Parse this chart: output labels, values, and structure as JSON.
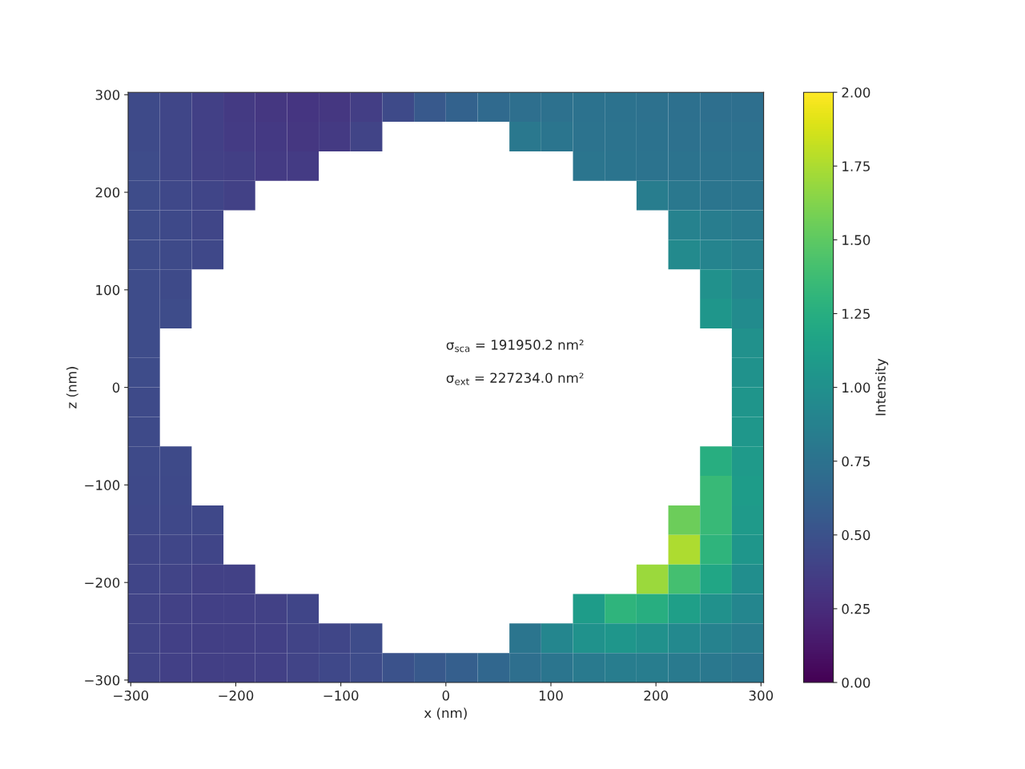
{
  "chart_data": {
    "type": "heatmap",
    "xlabel": "x (nm)",
    "ylabel": "z (nm)",
    "clabel": "Intensity",
    "xlim": [
      -302.5,
      302.5
    ],
    "ylim": [
      -302.5,
      302.5
    ],
    "xticks": [
      -300,
      -200,
      -100,
      0,
      100,
      200,
      300
    ],
    "yticks": [
      -300,
      -200,
      -100,
      0,
      100,
      200,
      300
    ],
    "clim": [
      0,
      2
    ],
    "cticks": [
      {
        "value": 0,
        "label": "0.00"
      },
      {
        "value": 0.25,
        "label": "0.25"
      },
      {
        "value": 0.5,
        "label": "0.50"
      },
      {
        "value": 0.75,
        "label": "0.75"
      },
      {
        "value": 1,
        "label": "1.00"
      },
      {
        "value": 1.25,
        "label": "1.25"
      },
      {
        "value": 1.5,
        "label": "1.50"
      },
      {
        "value": 1.75,
        "label": "1.75"
      },
      {
        "value": 2,
        "label": "2.00"
      }
    ],
    "annotations": [
      "σ$_{sca}$ = 191950.2 nm²",
      "σ$_{ext}$ = 227234.0 nm²"
    ],
    "cells": [
      [
        0.45,
        0.42,
        0.38,
        0.34,
        0.32,
        0.31,
        0.32,
        0.36,
        0.45,
        0.55,
        0.62,
        0.68,
        0.72,
        0.74,
        0.75,
        0.75,
        0.74,
        0.73,
        0.72,
        0.72
      ],
      [
        0.45,
        0.42,
        0.38,
        0.35,
        0.33,
        0.32,
        0.34,
        0.4,
        null,
        null,
        null,
        null,
        0.8,
        0.78,
        0.76,
        0.76,
        0.75,
        0.74,
        0.74,
        0.74
      ],
      [
        0.46,
        0.42,
        0.39,
        0.37,
        0.35,
        0.35,
        null,
        null,
        null,
        null,
        null,
        null,
        null,
        null,
        0.78,
        0.77,
        0.76,
        0.76,
        0.76,
        0.76
      ],
      [
        0.46,
        0.43,
        0.41,
        0.39,
        null,
        null,
        null,
        null,
        null,
        null,
        null,
        null,
        null,
        null,
        null,
        null,
        0.84,
        0.8,
        0.78,
        0.78
      ],
      [
        0.46,
        0.44,
        0.42,
        null,
        null,
        null,
        null,
        null,
        null,
        null,
        null,
        null,
        null,
        null,
        null,
        null,
        null,
        0.88,
        0.84,
        0.82
      ],
      [
        0.46,
        0.45,
        0.43,
        null,
        null,
        null,
        null,
        null,
        null,
        null,
        null,
        null,
        null,
        null,
        null,
        null,
        null,
        0.95,
        0.9,
        0.86
      ],
      [
        0.46,
        0.45,
        null,
        null,
        null,
        null,
        null,
        null,
        null,
        null,
        null,
        null,
        null,
        null,
        null,
        null,
        null,
        null,
        1.0,
        0.92
      ],
      [
        0.46,
        0.46,
        null,
        null,
        null,
        null,
        null,
        null,
        null,
        null,
        null,
        null,
        null,
        null,
        null,
        null,
        null,
        null,
        1.05,
        0.96
      ],
      [
        0.46,
        null,
        null,
        null,
        null,
        null,
        null,
        null,
        null,
        null,
        null,
        null,
        null,
        null,
        null,
        null,
        null,
        null,
        null,
        1.0
      ],
      [
        0.46,
        null,
        null,
        null,
        null,
        null,
        null,
        null,
        null,
        null,
        null,
        null,
        null,
        null,
        null,
        null,
        null,
        null,
        null,
        1.02
      ],
      [
        0.45,
        null,
        null,
        null,
        null,
        null,
        null,
        null,
        null,
        null,
        null,
        null,
        null,
        null,
        null,
        null,
        null,
        null,
        null,
        1.04
      ],
      [
        0.45,
        null,
        null,
        null,
        null,
        null,
        null,
        null,
        null,
        null,
        null,
        null,
        null,
        null,
        null,
        null,
        null,
        null,
        null,
        1.06
      ],
      [
        0.45,
        0.45,
        null,
        null,
        null,
        null,
        null,
        null,
        null,
        null,
        null,
        null,
        null,
        null,
        null,
        null,
        null,
        null,
        1.25,
        1.08
      ],
      [
        0.44,
        0.44,
        null,
        null,
        null,
        null,
        null,
        null,
        null,
        null,
        null,
        null,
        null,
        null,
        null,
        null,
        null,
        null,
        1.35,
        1.1
      ],
      [
        0.43,
        0.43,
        0.43,
        null,
        null,
        null,
        null,
        null,
        null,
        null,
        null,
        null,
        null,
        null,
        null,
        null,
        null,
        1.55,
        1.35,
        1.08
      ],
      [
        0.42,
        0.42,
        0.41,
        null,
        null,
        null,
        null,
        null,
        null,
        null,
        null,
        null,
        null,
        null,
        null,
        null,
        null,
        1.75,
        1.3,
        1.05
      ],
      [
        0.41,
        0.4,
        0.39,
        0.39,
        null,
        null,
        null,
        null,
        null,
        null,
        null,
        null,
        null,
        null,
        null,
        null,
        1.7,
        1.4,
        1.18,
        0.98
      ],
      [
        0.4,
        0.39,
        0.38,
        0.38,
        0.39,
        0.41,
        null,
        null,
        null,
        null,
        null,
        null,
        null,
        null,
        1.1,
        1.3,
        1.25,
        1.12,
        1.0,
        0.92
      ],
      [
        0.4,
        0.38,
        0.37,
        0.37,
        0.38,
        0.4,
        0.42,
        0.46,
        null,
        null,
        null,
        null,
        0.78,
        0.92,
        1.02,
        1.05,
        1.0,
        0.94,
        0.88,
        0.84
      ],
      [
        0.4,
        0.38,
        0.37,
        0.37,
        0.38,
        0.4,
        0.43,
        0.46,
        0.5,
        0.55,
        0.6,
        0.66,
        0.72,
        0.78,
        0.82,
        0.84,
        0.84,
        0.82,
        0.8,
        0.78
      ]
    ]
  }
}
